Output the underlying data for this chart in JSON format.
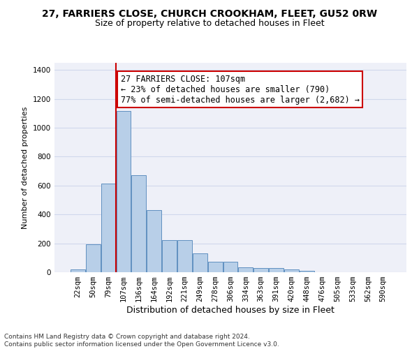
{
  "title1": "27, FARRIERS CLOSE, CHURCH CROOKHAM, FLEET, GU52 0RW",
  "title2": "Size of property relative to detached houses in Fleet",
  "xlabel": "Distribution of detached houses by size in Fleet",
  "ylabel": "Number of detached properties",
  "categories": [
    "22sqm",
    "50sqm",
    "79sqm",
    "107sqm",
    "136sqm",
    "164sqm",
    "192sqm",
    "221sqm",
    "249sqm",
    "278sqm",
    "306sqm",
    "334sqm",
    "363sqm",
    "391sqm",
    "420sqm",
    "448sqm",
    "476sqm",
    "505sqm",
    "533sqm",
    "562sqm",
    "590sqm"
  ],
  "values": [
    20,
    195,
    615,
    1115,
    670,
    430,
    220,
    220,
    130,
    73,
    73,
    33,
    30,
    30,
    18,
    12,
    0,
    0,
    0,
    0,
    0
  ],
  "bar_color": "#b8cfe8",
  "bar_edge_color": "#6090c0",
  "vline_color": "#cc0000",
  "annotation_text": "27 FARRIERS CLOSE: 107sqm\n← 23% of detached houses are smaller (790)\n77% of semi-detached houses are larger (2,682) →",
  "annotation_box_color": "#cc0000",
  "ylim": [
    0,
    1450
  ],
  "yticks": [
    0,
    200,
    400,
    600,
    800,
    1000,
    1200,
    1400
  ],
  "grid_color": "#d0d8ec",
  "bg_color": "#eef0f8",
  "footer": "Contains HM Land Registry data © Crown copyright and database right 2024.\nContains public sector information licensed under the Open Government Licence v3.0.",
  "title1_fontsize": 10,
  "title2_fontsize": 9,
  "xlabel_fontsize": 9,
  "ylabel_fontsize": 8,
  "tick_fontsize": 7.5,
  "annotation_fontsize": 8.5,
  "footer_fontsize": 6.5
}
